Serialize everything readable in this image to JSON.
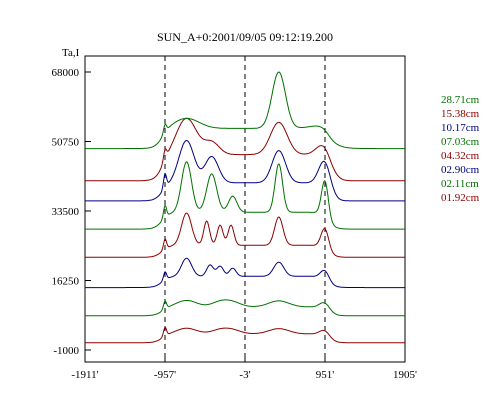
{
  "chart_data": {
    "type": "line",
    "title": "SUN_A+0:2001/09/05 09:12:19.200",
    "ylabel": "Ta,I",
    "xlim": [
      -1911,
      1905
    ],
    "ylim": [
      -1000,
      68000
    ],
    "x_ticks": [
      "-1911'",
      "-957'",
      "-3'",
      "951'",
      "1905'"
    ],
    "y_ticks": [
      "68000",
      "50750",
      "33500",
      "16250",
      "-1000"
    ],
    "y_tick_values": [
      68000,
      50750,
      33500,
      16250,
      -1000
    ],
    "dashed_x": [
      -957,
      -3,
      951
    ],
    "limb_x": 990,
    "series": [
      {
        "name": "01.92cm",
        "color": "#8b0000",
        "base": 800,
        "plateau": 2200,
        "spike": 2200,
        "bumps": [
          [
            -700,
            120,
            1400
          ],
          [
            -300,
            100,
            1000
          ],
          [
            -150,
            100,
            900
          ],
          [
            400,
            120,
            1300
          ],
          [
            950,
            60,
            1400
          ]
        ]
      },
      {
        "name": "02.11cm",
        "color": "#007000",
        "base": 7500,
        "plateau": 2200,
        "spike": 2000,
        "bumps": [
          [
            -700,
            120,
            1600
          ],
          [
            -300,
            100,
            1200
          ],
          [
            -150,
            100,
            1100
          ],
          [
            400,
            120,
            1500
          ],
          [
            950,
            60,
            1600
          ]
        ]
      },
      {
        "name": "02.90cm",
        "color": "#000080",
        "base": 14500,
        "plateau": 2800,
        "spike": 2000,
        "bumps": [
          [
            -700,
            60,
            4500
          ],
          [
            -420,
            40,
            2800
          ],
          [
            -300,
            40,
            2500
          ],
          [
            -150,
            40,
            2000
          ],
          [
            400,
            60,
            3500
          ],
          [
            950,
            50,
            2200
          ]
        ]
      },
      {
        "name": "04.32cm",
        "color": "#8b0000",
        "base": 22000,
        "plateau": 3000,
        "spike": 2500,
        "bumps": [
          [
            -700,
            60,
            8000
          ],
          [
            -460,
            35,
            6000
          ],
          [
            -300,
            35,
            5000
          ],
          [
            -170,
            35,
            5000
          ],
          [
            400,
            50,
            7000
          ],
          [
            950,
            45,
            5000
          ]
        ]
      },
      {
        "name": "07.03cm",
        "color": "#007000",
        "base": 29000,
        "plateau": 4200,
        "spike": 3000,
        "bumps": [
          [
            -700,
            60,
            12500
          ],
          [
            -400,
            60,
            9500
          ],
          [
            -150,
            50,
            4000
          ],
          [
            400,
            45,
            12000
          ],
          [
            950,
            40,
            9000
          ]
        ]
      },
      {
        "name": "10.17cm",
        "color": "#000080",
        "base": 36000,
        "plateau": 4500,
        "spike": 3500,
        "bumps": [
          [
            -700,
            90,
            10500
          ],
          [
            -400,
            80,
            6500
          ],
          [
            400,
            80,
            8000
          ],
          [
            950,
            70,
            6500
          ]
        ]
      },
      {
        "name": "15.38cm",
        "color": "#8b0000",
        "base": 41000,
        "plateau": 6500,
        "spike": 2500,
        "bumps": [
          [
            -700,
            120,
            9000
          ],
          [
            -400,
            90,
            3000
          ],
          [
            400,
            100,
            8000
          ],
          [
            950,
            90,
            3500
          ]
        ]
      },
      {
        "name": "28.71cm",
        "color": "#007000",
        "base": 49000,
        "plateau": 5000,
        "spike": 2000,
        "bumps": [
          [
            -700,
            150,
            2500
          ],
          [
            400,
            80,
            14000
          ],
          [
            950,
            150,
            1000
          ]
        ]
      }
    ],
    "legend": [
      {
        "label": "28.71cm",
        "color": "#007000"
      },
      {
        "label": "15.38cm",
        "color": "#8b0000"
      },
      {
        "label": "10.17cm",
        "color": "#000080"
      },
      {
        "label": "07.03cm",
        "color": "#007000"
      },
      {
        "label": "04.32cm",
        "color": "#8b0000"
      },
      {
        "label": "02.90cm",
        "color": "#000080"
      },
      {
        "label": "02.11cm",
        "color": "#007000"
      },
      {
        "label": "01.92cm",
        "color": "#8b0000"
      }
    ]
  }
}
